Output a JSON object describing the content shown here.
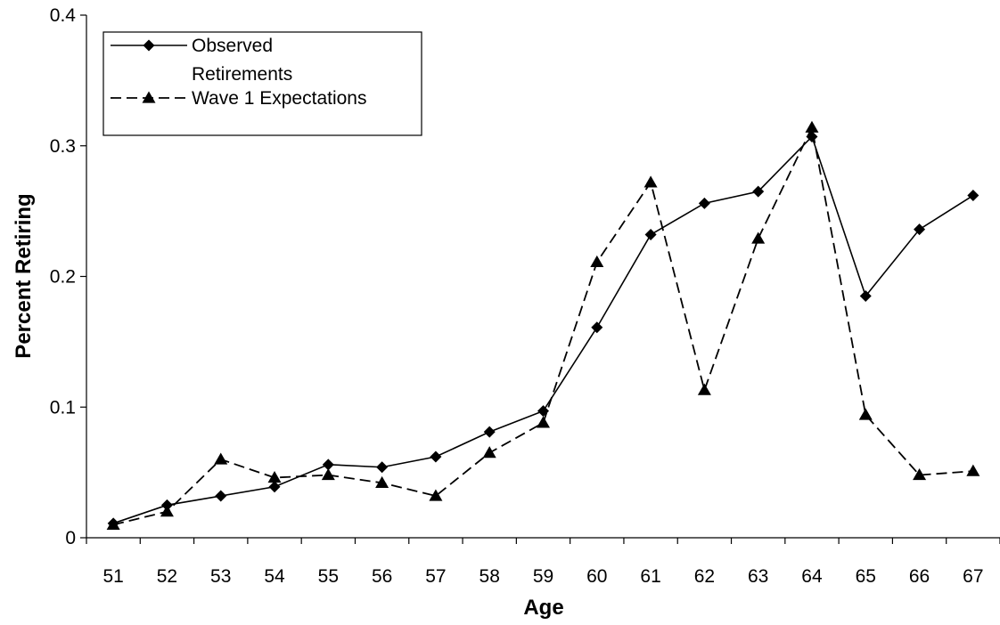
{
  "chart_data": {
    "type": "line",
    "xlabel": "Age",
    "ylabel": "Percent Retiring",
    "ylim": [
      0,
      0.4
    ],
    "y_ticks": [
      "0",
      "0.1",
      "0.2",
      "0.3",
      "0.4"
    ],
    "categories": [
      "51",
      "52",
      "53",
      "54",
      "55",
      "56",
      "57",
      "58",
      "59",
      "60",
      "61",
      "62",
      "63",
      "64",
      "65",
      "66",
      "67"
    ],
    "grid": false,
    "legend_position": "top-left",
    "series": [
      {
        "name": "Observed Retirements",
        "name_lines": [
          "Observed",
          "Retirements"
        ],
        "marker": "diamond",
        "line_style": "solid",
        "color": "#000000",
        "values": [
          0.011,
          0.025,
          0.032,
          0.039,
          0.056,
          0.054,
          0.062,
          0.081,
          0.097,
          0.161,
          0.232,
          0.256,
          0.265,
          0.307,
          0.185,
          0.236,
          0.262
        ]
      },
      {
        "name": "Wave 1 Expectations",
        "name_lines": [
          "Wave 1 Expectations"
        ],
        "marker": "triangle",
        "line_style": "dashed",
        "color": "#000000",
        "values": [
          0.01,
          0.02,
          0.06,
          0.046,
          0.048,
          0.042,
          0.032,
          0.065,
          0.088,
          0.211,
          0.272,
          0.113,
          0.229,
          0.314,
          0.094,
          0.048,
          0.051
        ]
      }
    ]
  }
}
